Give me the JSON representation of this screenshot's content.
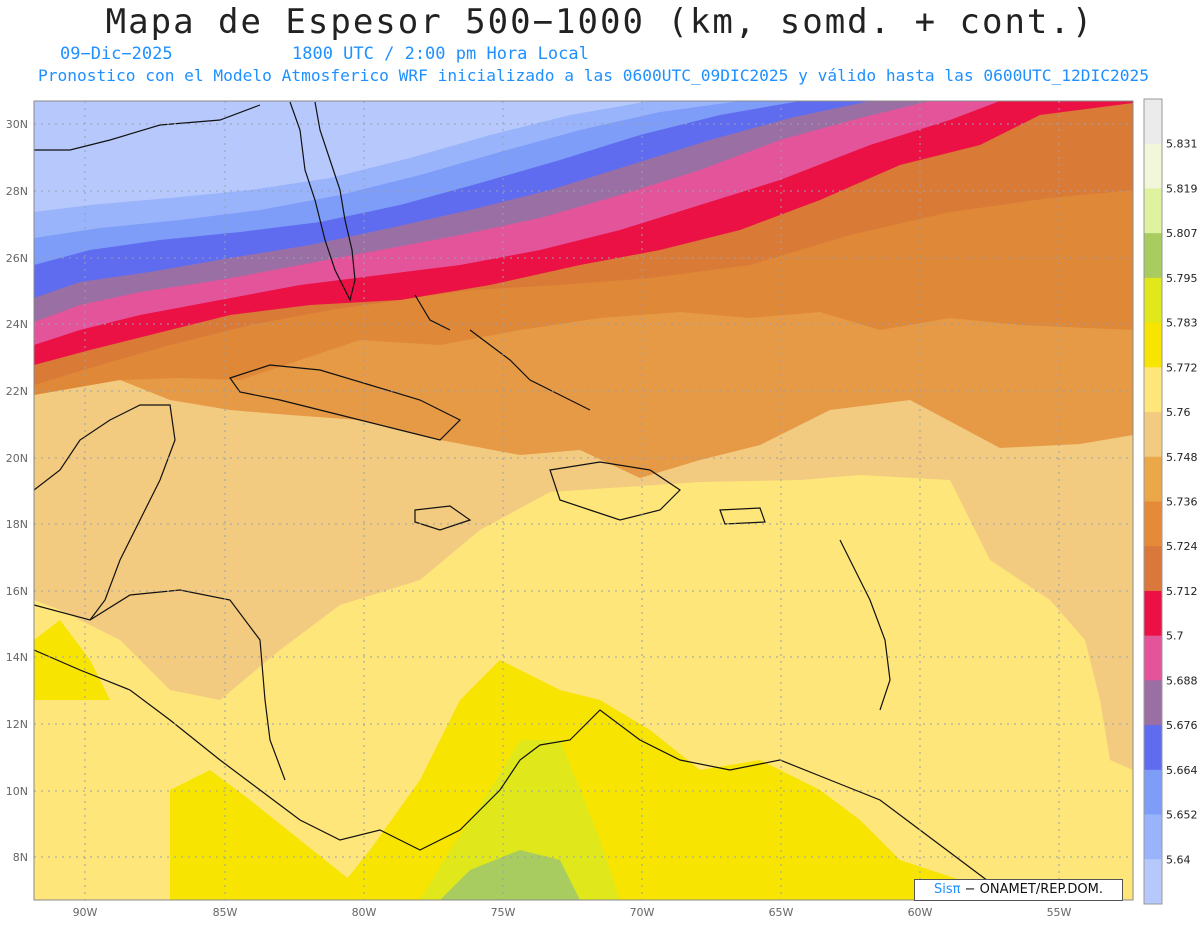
{
  "title": "Mapa de Espesor 500−1000 (km, somd. + cont.)",
  "date": "09−Dic−2025",
  "utc_time": "1800 UTC / 2:00 pm Hora Local",
  "description": "Pronostico con el Modelo Atmosferico WRF inicializado a las 0600UTC_09DIC2025 y válido hasta las  0600UTC_12DIC2025",
  "credit": {
    "logo": "Sisπ",
    "text": "− ONAMET/REP.DOM."
  },
  "axes": {
    "lat_labels": [
      "30N",
      "28N",
      "26N",
      "24N",
      "22N",
      "20N",
      "18N",
      "16N",
      "14N",
      "12N",
      "10N",
      "8N"
    ],
    "lon_labels": [
      "90W",
      "85W",
      "80W",
      "75W",
      "70W",
      "65W",
      "60W",
      "55W"
    ],
    "lat_range": [
      6.6,
      30.7
    ],
    "lon_range": [
      -92,
      -52.6
    ]
  },
  "colorbar": {
    "levels": [
      "5.831",
      "5.819",
      "5.807",
      "5.795",
      "5.783",
      "5.772",
      "5.76",
      "5.748",
      "5.736",
      "5.724",
      "5.712",
      "5.7",
      "5.688",
      "5.676",
      "5.664",
      "5.652",
      "5.64"
    ],
    "colors": [
      "#ebebeb",
      "#f2f7d9",
      "#dff2a0",
      "#a8cc60",
      "#e0e81c",
      "#f7e400",
      "#ffe67a",
      "#f2cb80",
      "#eba849",
      "#e58a38",
      "#d9783a",
      "#ec1144",
      "#e3549b",
      "#9a70a4",
      "#5f6cf0",
      "#7e9df8",
      "#9ab4fc",
      "#b7c8fc"
    ]
  }
}
